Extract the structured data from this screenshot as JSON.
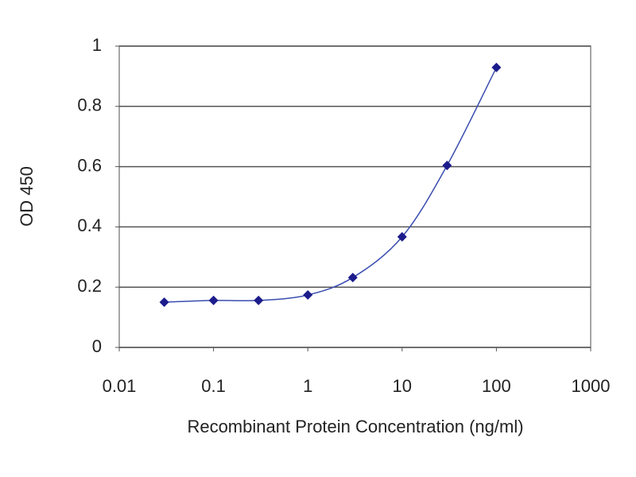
{
  "chart_data": {
    "type": "scatter",
    "xlabel": "Recombinant Protein Concentration (ng/ml)",
    "ylabel": "OD 450",
    "x": [
      0.03,
      0.1,
      0.3,
      1,
      3,
      10,
      30,
      100
    ],
    "values": [
      0.15,
      0.156,
      0.156,
      0.174,
      0.232,
      0.367,
      0.604,
      0.929
    ],
    "color": "#1c1c8c",
    "line_color": "#3a4db0",
    "line": true,
    "xscale": "log",
    "xlim": [
      0.01,
      1000
    ],
    "xticks": [
      0.01,
      0.1,
      1,
      10,
      100,
      1000
    ],
    "ylim": [
      0,
      1
    ],
    "yticks": [
      0,
      0.2,
      0.4,
      0.6,
      0.8,
      1
    ],
    "grid": true
  }
}
